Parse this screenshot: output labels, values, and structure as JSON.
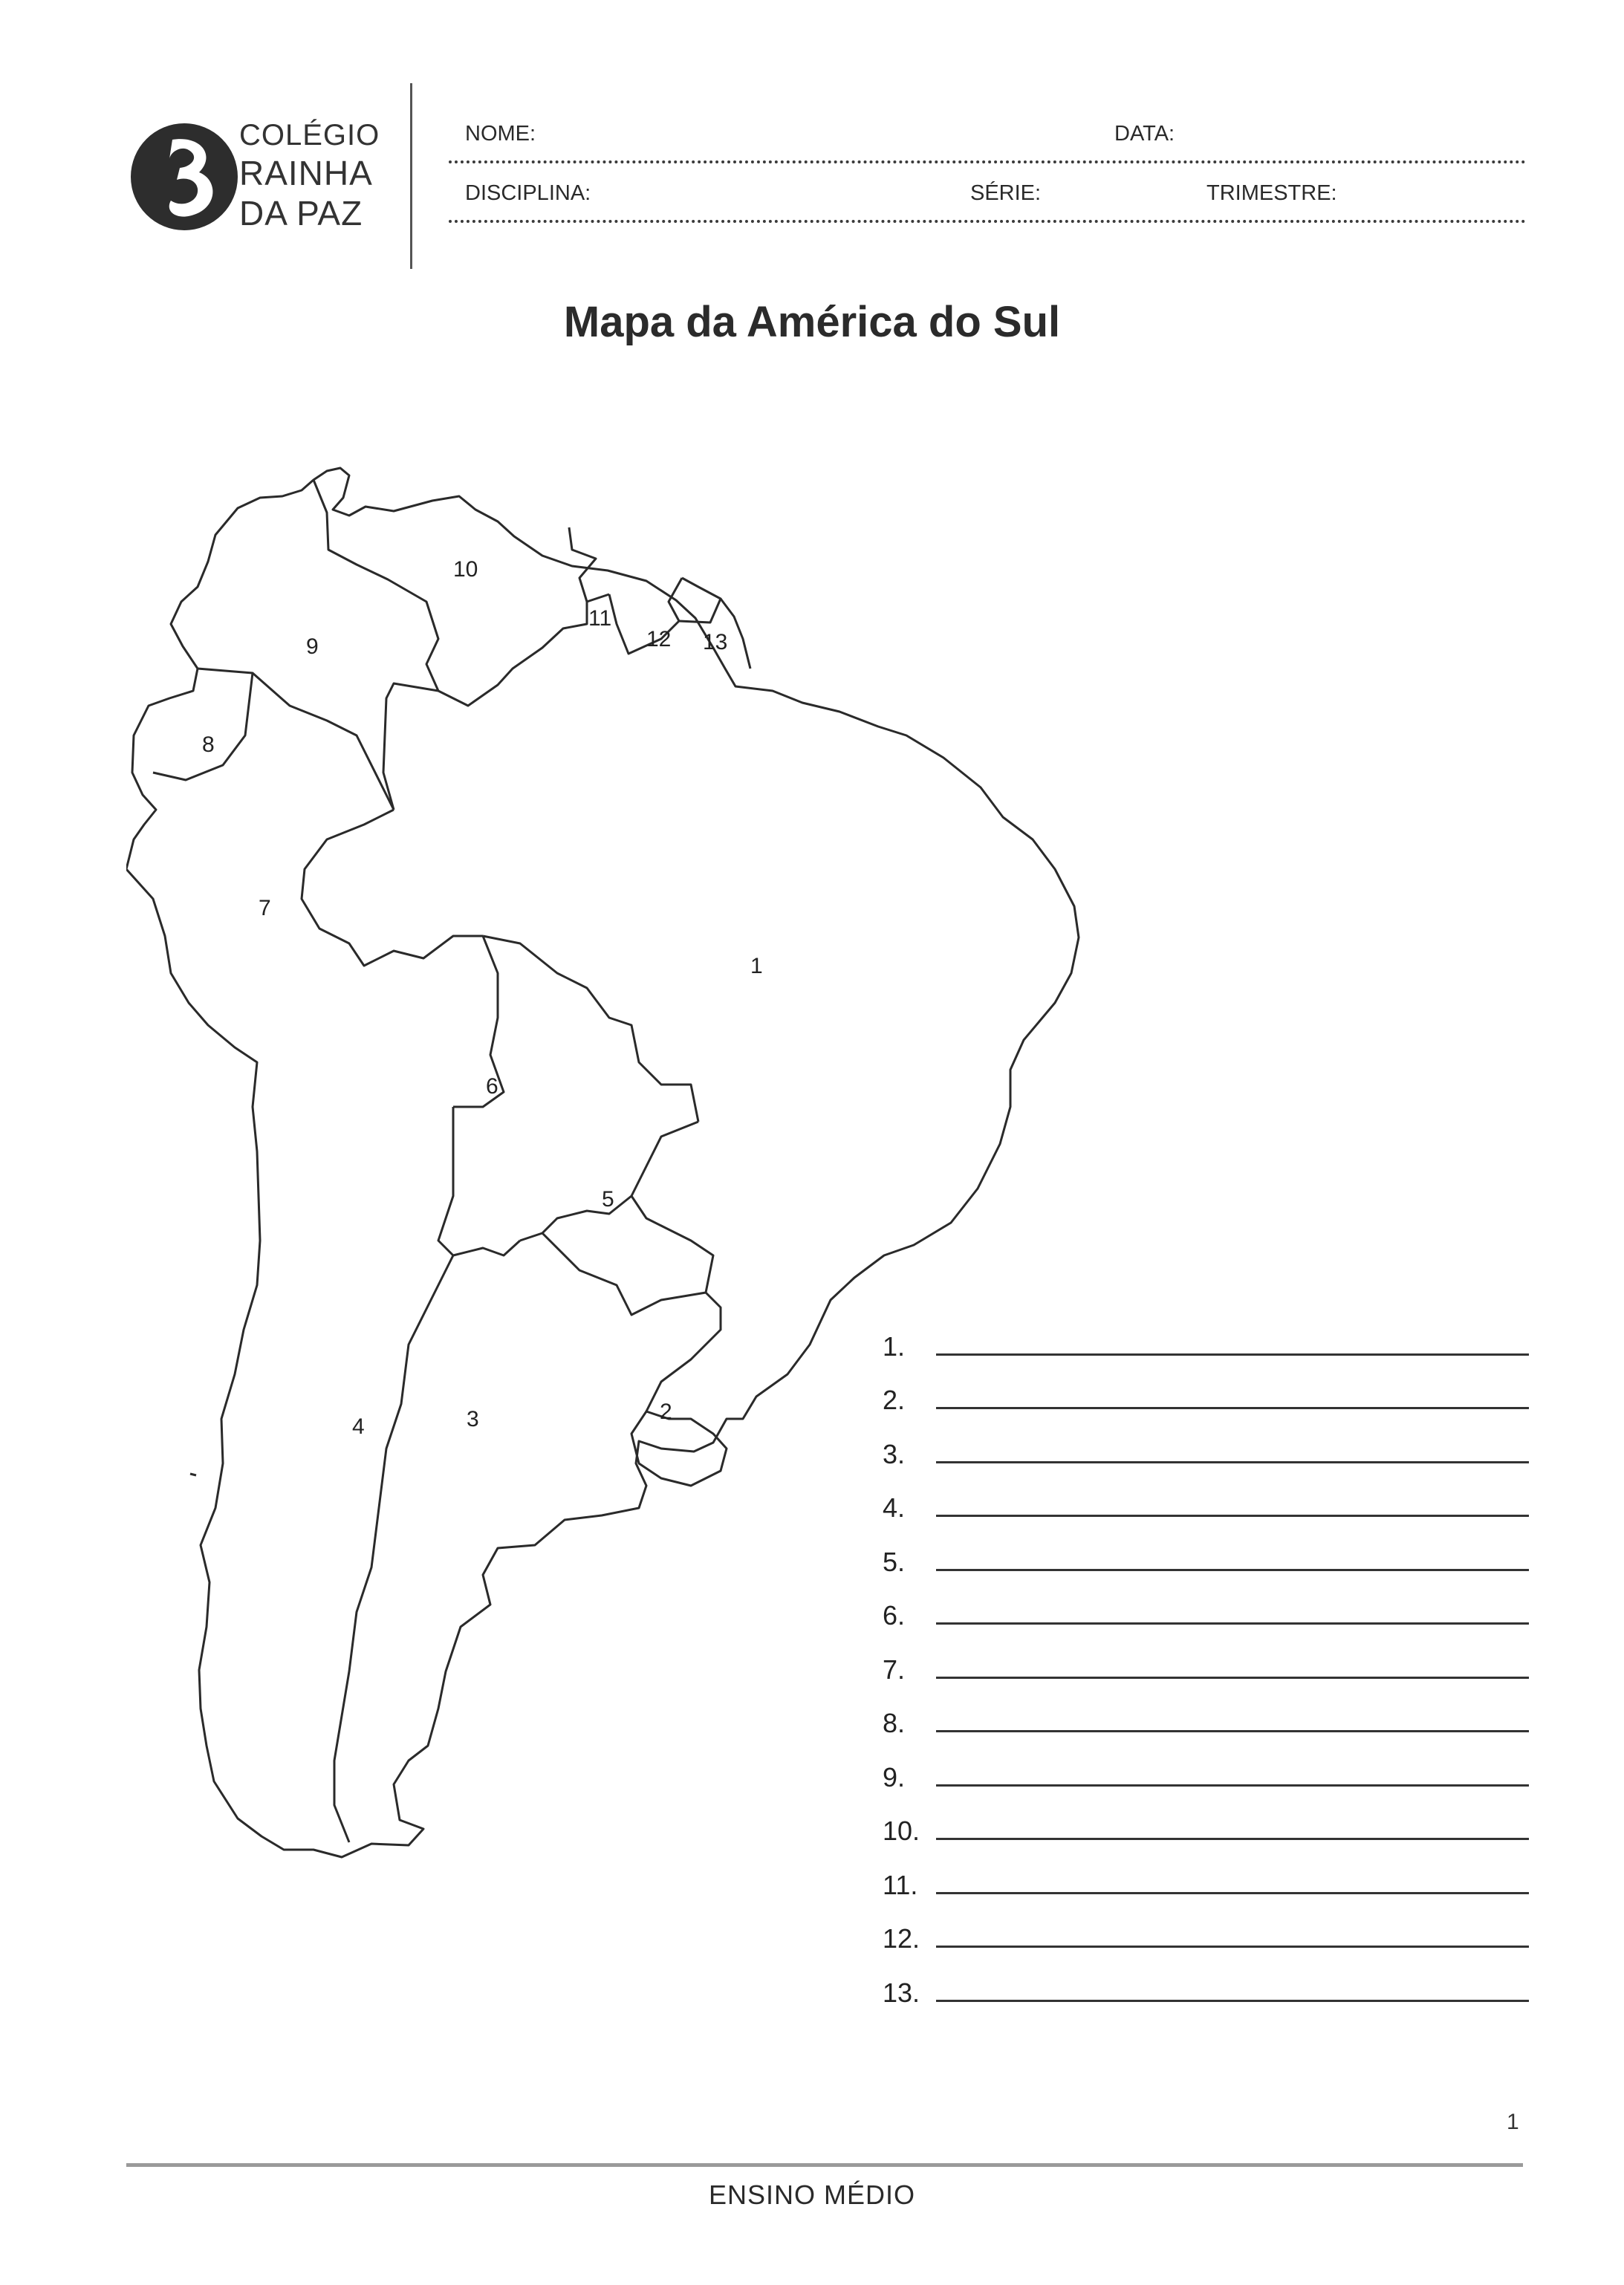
{
  "header": {
    "logo_text": [
      "COLÉGIO",
      "RAINHA",
      "DA PAZ"
    ],
    "fields": {
      "nome": "NOME:",
      "data": "DATA:",
      "disciplina": "DISCIPLINA:",
      "serie": "SÉRIE:",
      "trimestre": "TRIMESTRE:"
    }
  },
  "title": "Mapa da América do Sul",
  "map": {
    "labels": [
      "1",
      "2",
      "3",
      "4",
      "5",
      "6",
      "7",
      "8",
      "9",
      "10",
      "11",
      "12",
      "13"
    ]
  },
  "answers": [
    "1.",
    "2.",
    "3.",
    "4.",
    "5.",
    "6.",
    "7.",
    "8.",
    "9.",
    "10.",
    "11.",
    "12.",
    "13."
  ],
  "footer": {
    "page_number": "1",
    "text": "ENSINO MÉDIO"
  }
}
